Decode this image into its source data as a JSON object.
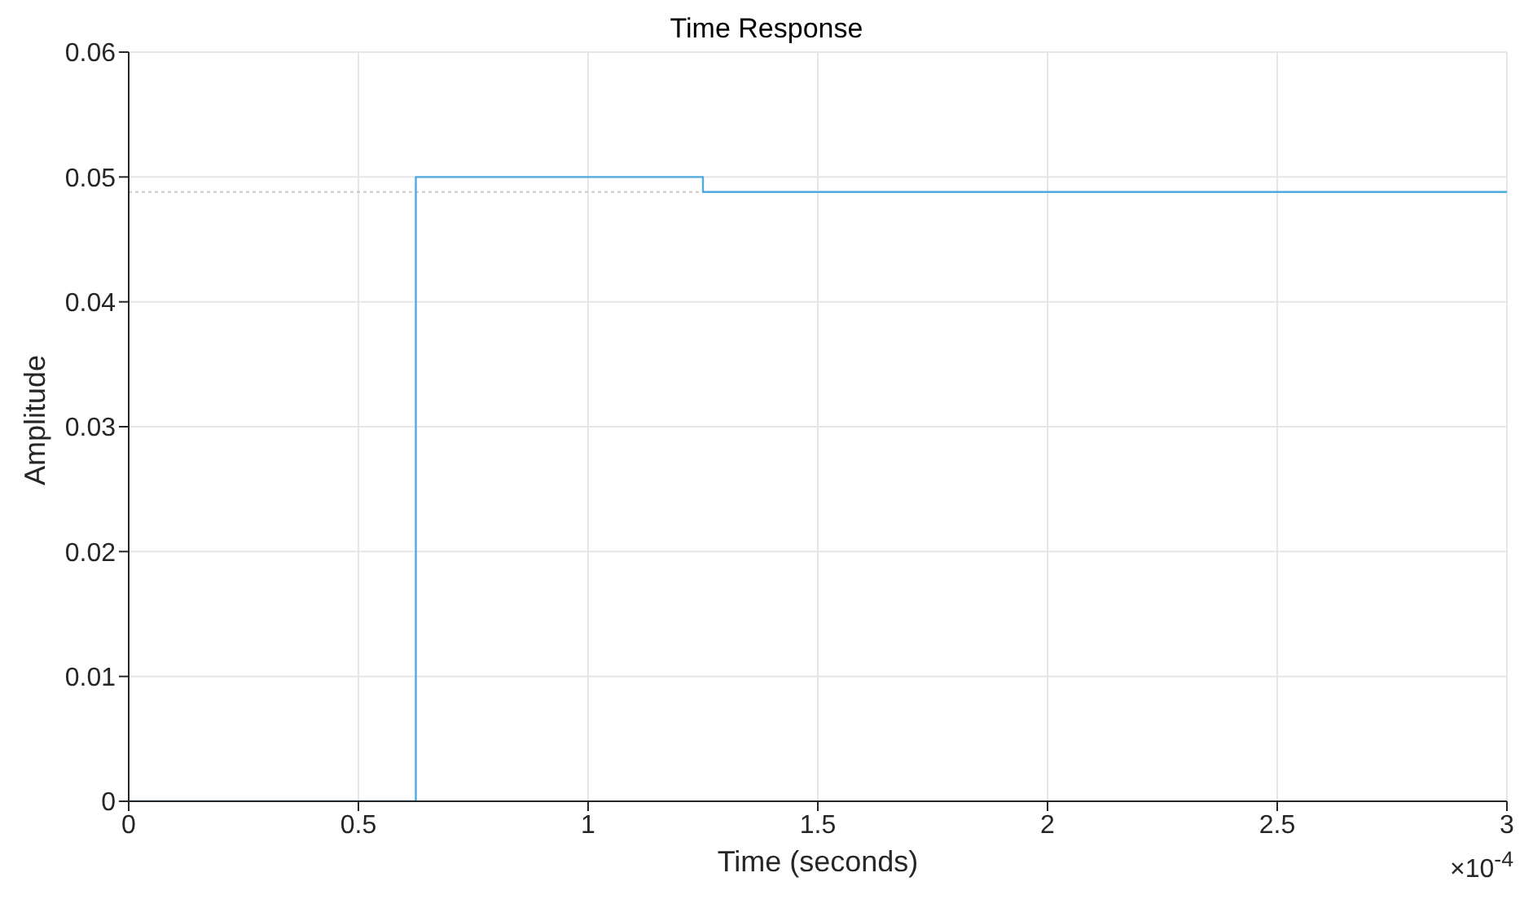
{
  "chart_data": {
    "type": "step",
    "title": "Time Response",
    "xlabel": "Time (seconds)",
    "ylabel": "Amplitude",
    "x": [
      0,
      0.625,
      1.25,
      3
    ],
    "series": [
      {
        "color": "#4dabe0",
        "values": [
          0,
          0.05,
          0.0488,
          0.0488
        ]
      }
    ],
    "xlim": [
      0,
      3
    ],
    "xticks": [
      0,
      0.5,
      1,
      1.5,
      2,
      2.5,
      3
    ],
    "ylim": [
      0,
      0.06
    ],
    "yticks": [
      0,
      0.01,
      0.02,
      0.03,
      0.04,
      0.05,
      0.06
    ],
    "ref_lines": [
      {
        "axis": "y",
        "value": 0.0488,
        "color": "#c8c8c8",
        "line_style": "dotted"
      }
    ],
    "annotations": [
      "×10$^{-4}$"
    ],
    "grid": true
  }
}
